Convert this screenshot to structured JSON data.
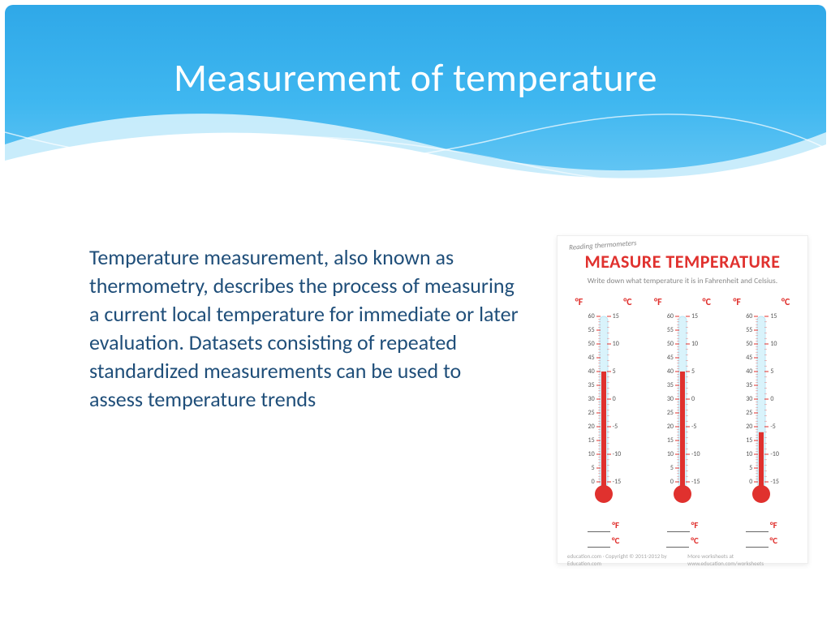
{
  "colors": {
    "header_top": "#2fa8e8",
    "header_bottom": "#6fcaf5",
    "wave_light": "#cfeefb",
    "wave_line": "#ffffff",
    "title_color": "#ffffff",
    "body_color": "#1f4e79",
    "accent_red": "#e0312e",
    "thermo_glass": "#d9f3fb",
    "tick_color": "#e0312e",
    "subtext": "#888888"
  },
  "slide": {
    "title": "Measurement of temperature",
    "title_fontsize": 48,
    "body": "Temperature measurement, also known as thermometry, describes the process of measuring a current local temperature for immediate or later evaluation. Datasets consisting of repeated standardized measurements can be used to assess temperature trends",
    "body_fontsize": 26
  },
  "worksheet": {
    "pretitle": "Reading thermometers",
    "title": "MEASURE TEMPERATURE",
    "subtitle": "Write down what temperature it is in Fahrenheit and Celsius.",
    "footer_left": "education.com · Copyright © 2011-2012 by Education.com",
    "footer_right": "More worksheets at www.education.com/worksheets",
    "unit_f": "°F",
    "unit_c": "°C",
    "f_scale": {
      "min": 0,
      "max": 60,
      "step": 5
    },
    "c_scale": {
      "min": -15,
      "max": 15,
      "step": 5
    },
    "thermometers": [
      {
        "fill_f": 40,
        "fluid_color": "#e0312e"
      },
      {
        "fill_f": 40,
        "fluid_color": "#e0312e"
      },
      {
        "fill_f": 18,
        "fluid_color": "#e0312e"
      }
    ],
    "blank_units": [
      "°F",
      "°C"
    ]
  }
}
